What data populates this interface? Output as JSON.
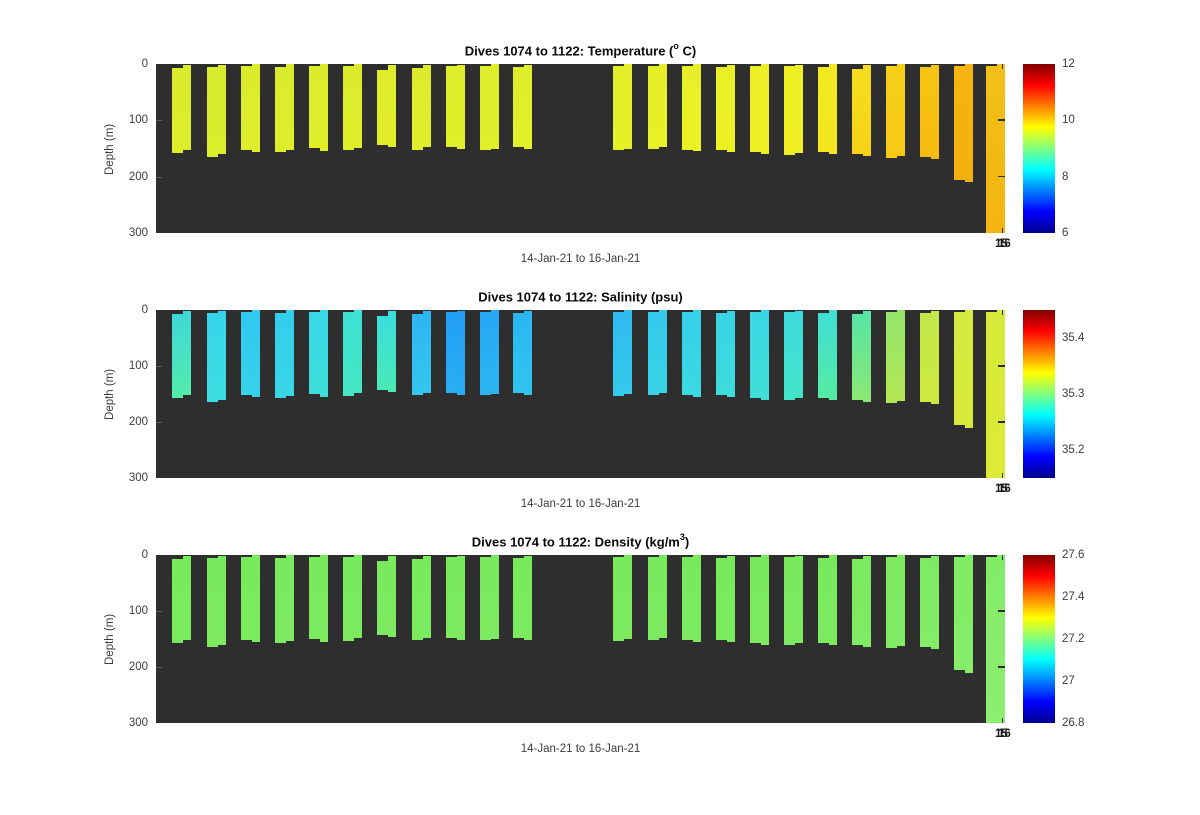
{
  "figure": {
    "bg_color": "#ffffff",
    "plot_bg_color": "#2e2e2e",
    "text_color": "#3c3c3c",
    "title_color": "#0a0a0a"
  },
  "chart_data": {
    "type": "bar",
    "description": "Three stacked panels of ocean glider dive profile bars vs depth, colored by measured value (jet colormap)",
    "xlabel": "14-Jan-21 to 16-Jan-21",
    "ylabel": "Depth (m)",
    "ylim": [
      0,
      300
    ],
    "yticks": [
      "0",
      "100",
      "200",
      "300"
    ],
    "ytick_values": [
      0,
      100,
      200,
      300
    ],
    "x_overlap_ticks": [
      "15",
      "16"
    ],
    "grid": false,
    "legend": false,
    "jet_stops": [
      [
        0.0,
        "#00008f"
      ],
      [
        0.125,
        "#0000ff"
      ],
      [
        0.375,
        "#00ffff"
      ],
      [
        0.625,
        "#ffff00"
      ],
      [
        0.875,
        "#ff0000"
      ],
      [
        1.0,
        "#810000"
      ]
    ],
    "dive_bars": [
      {
        "x": 16,
        "t1": 7,
        "b1": 158,
        "t2": 2,
        "b2": 152
      },
      {
        "x": 50.5,
        "t1": 5,
        "b1": 165,
        "t2": 1,
        "b2": 160
      },
      {
        "x": 85,
        "t1": 4,
        "b1": 152,
        "t2": 0,
        "b2": 156
      },
      {
        "x": 119,
        "t1": 5,
        "b1": 157,
        "t2": 0,
        "b2": 153
      },
      {
        "x": 153,
        "t1": 3,
        "b1": 150,
        "t2": 0,
        "b2": 155
      },
      {
        "x": 187,
        "t1": 4,
        "b1": 153,
        "t2": 0,
        "b2": 149
      },
      {
        "x": 221,
        "t1": 11,
        "b1": 143,
        "t2": 2,
        "b2": 147
      },
      {
        "x": 255.5,
        "t1": 7,
        "b1": 152,
        "t2": 1,
        "b2": 148
      },
      {
        "x": 289.5,
        "t1": 4,
        "b1": 148,
        "t2": 1,
        "b2": 151
      },
      {
        "x": 323.5,
        "t1": 3,
        "b1": 152,
        "t2": 0,
        "b2": 150
      },
      {
        "x": 357,
        "t1": 5,
        "b1": 148,
        "t2": 1,
        "b2": 151
      },
      {
        "x": 457,
        "t1": 4,
        "b1": 153,
        "t2": 0,
        "b2": 150
      },
      {
        "x": 491.5,
        "t1": 3,
        "b1": 151,
        "t2": 0,
        "b2": 148
      },
      {
        "x": 525.5,
        "t1": 4,
        "b1": 152,
        "t2": 0,
        "b2": 155
      },
      {
        "x": 559.5,
        "t1": 6,
        "b1": 152,
        "t2": 1,
        "b2": 156
      },
      {
        "x": 593.5,
        "t1": 3,
        "b1": 157,
        "t2": 0,
        "b2": 160
      },
      {
        "x": 627.5,
        "t1": 4,
        "b1": 161,
        "t2": 1,
        "b2": 158
      },
      {
        "x": 662,
        "t1": 5,
        "b1": 157,
        "t2": 0,
        "b2": 160
      },
      {
        "x": 696,
        "t1": 8,
        "b1": 160,
        "t2": 2,
        "b2": 164
      },
      {
        "x": 730,
        "t1": 4,
        "b1": 166,
        "t2": 0,
        "b2": 163
      },
      {
        "x": 764,
        "t1": 6,
        "b1": 165,
        "t2": 1,
        "b2": 168
      },
      {
        "x": 798,
        "t1": 3,
        "b1": 206,
        "t2": 0,
        "b2": 210
      },
      {
        "x": 830,
        "t1": 4,
        "b1": 300,
        "t2": 0,
        "b2": 300
      }
    ],
    "panels": [
      {
        "id": "temperature",
        "title_prefix": "Dives 1074 to 1122: Temperature (",
        "title_sup": "o",
        "title_suffix": " C)",
        "colorbar": {
          "min": 6,
          "max": 12,
          "ticks": [
            {
              "label": "12",
              "f": 1.0
            },
            {
              "label": "10",
              "f": 0.6667
            },
            {
              "label": "8",
              "f": 0.3333
            },
            {
              "label": "6",
              "f": 0.0
            }
          ]
        },
        "value_est_degC": [
          9.5,
          9.5,
          9.5,
          9.5,
          9.5,
          9.5,
          9.5,
          9.5,
          9.6,
          9.6,
          9.6,
          9.6,
          9.7,
          9.7,
          9.7,
          9.7,
          9.8,
          9.8,
          10.0,
          10.1,
          10.2,
          10.3,
          10.3
        ],
        "bar_colors": [
          [
            "#d9ec2e",
            "#dcee2a"
          ],
          [
            "#d8eb2f",
            "#dbee2c"
          ],
          [
            "#dbec2d",
            "#deee2a"
          ],
          [
            "#daec2e",
            "#ddee2b"
          ],
          [
            "#dcec2c",
            "#dfee29"
          ],
          [
            "#dbec2d",
            "#deee2a"
          ],
          [
            "#ddec2c",
            "#e0ee28"
          ],
          [
            "#dcec2d",
            "#dfee2a"
          ],
          [
            "#deed2b",
            "#e1ef28"
          ],
          [
            "#dded2c",
            "#e0ef29"
          ],
          [
            "#dfee2a",
            "#e2f027"
          ],
          [
            "#e3ee2a",
            "#e6f027"
          ],
          [
            "#e5ee29",
            "#e8f026"
          ],
          [
            "#e7ef28",
            "#eaf125"
          ],
          [
            "#e9ef27",
            "#ecf124"
          ],
          [
            "#ecef25",
            "#eef023"
          ],
          [
            "#eeee23",
            "#f0ee21"
          ],
          [
            "#f1ea20",
            "#f3e61d"
          ],
          [
            "#f4df1b",
            "#f6d218"
          ],
          [
            "#f6d018",
            "#f7c914"
          ],
          [
            "#f7c412",
            "#f6bb10"
          ],
          [
            "#f5b40f",
            "#f4b00f"
          ],
          [
            "#f2c018",
            "#f3b412"
          ]
        ]
      },
      {
        "id": "salinity",
        "title_prefix": "Dives 1074 to 1122: Salinity (psu)",
        "title_sup": "",
        "title_suffix": "",
        "colorbar": {
          "min": 35.15,
          "max": 35.45,
          "ticks": [
            {
              "label": "35.4",
              "f": 0.8333
            },
            {
              "label": "35.3",
              "f": 0.5
            },
            {
              "label": "35.2",
              "f": 0.1667
            }
          ]
        },
        "value_est_psu": [
          35.28,
          35.27,
          35.26,
          35.26,
          35.27,
          35.28,
          35.28,
          35.25,
          35.24,
          35.24,
          35.25,
          35.25,
          35.26,
          35.27,
          35.27,
          35.27,
          35.28,
          35.29,
          35.3,
          35.31,
          35.32,
          35.33,
          35.33
        ],
        "bar_colors": [
          [
            "#3fd8d8",
            "#52ecaa"
          ],
          [
            "#36d4ec",
            "#3cdee0"
          ],
          [
            "#31c8f1",
            "#36d2e9"
          ],
          [
            "#33cdee",
            "#38d7e5"
          ],
          [
            "#37d7e7",
            "#3cdfd9"
          ],
          [
            "#3de0d4",
            "#46e6c2"
          ],
          [
            "#3adedd",
            "#4ae9b4"
          ],
          [
            "#2db6f3",
            "#34c6ec"
          ],
          [
            "#229ef6",
            "#29adf3"
          ],
          [
            "#26a7f5",
            "#2cb6f1"
          ],
          [
            "#2bb6f2",
            "#31c4ed"
          ],
          [
            "#30baf0",
            "#36c9e9"
          ],
          [
            "#34c9ed",
            "#39d3e5"
          ],
          [
            "#36cfe9",
            "#3bd9e1"
          ],
          [
            "#38d4e6",
            "#3ddcdb"
          ],
          [
            "#39d6e4",
            "#3fdfd6"
          ],
          [
            "#3cdade",
            "#44e4c8"
          ],
          [
            "#3fdfd6",
            "#55eba2"
          ],
          [
            "#55e5a6",
            "#8ce873"
          ],
          [
            "#93e56c",
            "#b5e654"
          ],
          [
            "#c2e74a",
            "#d0e93f"
          ],
          [
            "#d3e93d",
            "#d8ea39"
          ],
          [
            "#d7ea39",
            "#dceb35"
          ]
        ]
      },
      {
        "id": "density",
        "title_prefix": "Dives 1074 to 1122: Density (kg/m",
        "title_sup": "3",
        "title_suffix": ")",
        "colorbar": {
          "min": 26.8,
          "max": 27.6,
          "ticks": [
            {
              "label": "27.6",
              "f": 1.0
            },
            {
              "label": "27.4",
              "f": 0.75
            },
            {
              "label": "27.2",
              "f": 0.5
            },
            {
              "label": "27",
              "f": 0.25
            },
            {
              "label": "26.8",
              "f": 0.0
            }
          ]
        },
        "value_est_kgm3": [
          27.21,
          27.21,
          27.21,
          27.21,
          27.21,
          27.21,
          27.21,
          27.21,
          27.21,
          27.21,
          27.21,
          27.21,
          27.21,
          27.21,
          27.21,
          27.21,
          27.21,
          27.21,
          27.22,
          27.22,
          27.22,
          27.22,
          27.22
        ],
        "bar_colors": [
          [
            "#77e95c",
            "#7cea5f"
          ],
          [
            "#78e95d",
            "#7dea60"
          ],
          [
            "#77e95c",
            "#7cea5f"
          ],
          [
            "#79e95e",
            "#7eea61"
          ],
          [
            "#78e95d",
            "#7dea60"
          ],
          [
            "#77e95c",
            "#7cea5f"
          ],
          [
            "#79e95e",
            "#7eea61"
          ],
          [
            "#78e95d",
            "#7dea60"
          ],
          [
            "#78e95d",
            "#7dea60"
          ],
          [
            "#79e95e",
            "#7eea61"
          ],
          [
            "#78e95d",
            "#7dea60"
          ],
          [
            "#78e95d",
            "#7dea60"
          ],
          [
            "#79e95e",
            "#7eea61"
          ],
          [
            "#78e95d",
            "#7dea60"
          ],
          [
            "#77e95c",
            "#7cea5f"
          ],
          [
            "#78e95d",
            "#7dea60"
          ],
          [
            "#79e95e",
            "#7eea61"
          ],
          [
            "#78e95d",
            "#7dea60"
          ],
          [
            "#7bea60",
            "#80eb64"
          ],
          [
            "#7cea61",
            "#82eb66"
          ],
          [
            "#7eea63",
            "#84ec68"
          ],
          [
            "#80eb64",
            "#86ec6a"
          ],
          [
            "#82eb66",
            "#8dee71"
          ]
        ]
      }
    ]
  }
}
